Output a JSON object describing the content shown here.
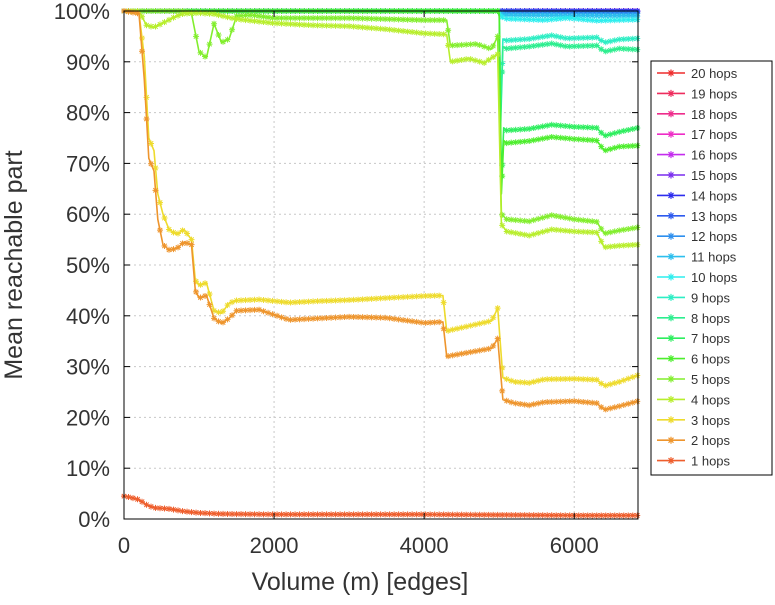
{
  "chart_data": {
    "type": "line",
    "title": "",
    "xlabel": "Volume (m) [edges]",
    "ylabel": "Mean reachable part",
    "xlim": [
      0,
      6850
    ],
    "ylim": [
      0,
      100
    ],
    "xticks": [
      {
        "value": 0,
        "label": "0"
      },
      {
        "value": 2000,
        "label": "2000"
      },
      {
        "value": 4000,
        "label": "4000"
      },
      {
        "value": 6000,
        "label": "6000"
      }
    ],
    "yticks": [
      {
        "value": 0,
        "label": "0%"
      },
      {
        "value": 10,
        "label": "10%"
      },
      {
        "value": 20,
        "label": "20%"
      },
      {
        "value": 30,
        "label": "30%"
      },
      {
        "value": 40,
        "label": "40%"
      },
      {
        "value": 50,
        "label": "50%"
      },
      {
        "value": 60,
        "label": "60%"
      },
      {
        "value": 70,
        "label": "70%"
      },
      {
        "value": 80,
        "label": "80%"
      },
      {
        "value": 90,
        "label": "90%"
      },
      {
        "value": 100,
        "label": "100%"
      }
    ],
    "grid": true,
    "legend_position": "right",
    "series": [
      {
        "name": "20 hops",
        "color": "#ee2d2d",
        "x": [
          0,
          5000,
          6850
        ],
        "y": [
          100,
          100,
          100
        ]
      },
      {
        "name": "19 hops",
        "color": "#ee2d5e",
        "x": [
          0,
          5000,
          6850
        ],
        "y": [
          100,
          100,
          100
        ]
      },
      {
        "name": "18 hops",
        "color": "#ee2d8c",
        "x": [
          0,
          5000,
          6850
        ],
        "y": [
          100,
          100,
          100
        ]
      },
      {
        "name": "17 hops",
        "color": "#ee2dc6",
        "x": [
          0,
          5000,
          6850
        ],
        "y": [
          100,
          100,
          100
        ]
      },
      {
        "name": "16 hops",
        "color": "#c42dee",
        "x": [
          0,
          5000,
          6850
        ],
        "y": [
          100,
          100,
          100
        ]
      },
      {
        "name": "15 hops",
        "color": "#7a2dee",
        "x": [
          0,
          5000,
          6850
        ],
        "y": [
          100,
          100,
          100
        ]
      },
      {
        "name": "14 hops",
        "color": "#2d2dee",
        "x": [
          0,
          5000,
          6850
        ],
        "y": [
          100,
          100,
          100
        ]
      },
      {
        "name": "13 hops",
        "color": "#2d5aee",
        "x": [
          0,
          5000,
          6850
        ],
        "y": [
          100,
          100,
          99.8
        ]
      },
      {
        "name": "12 hops",
        "color": "#2d8fee",
        "x": [
          0,
          5000,
          5050,
          6850
        ],
        "y": [
          100,
          100,
          99.5,
          99.5
        ]
      },
      {
        "name": "11 hops",
        "color": "#2dbfee",
        "x": [
          0,
          5000,
          5050,
          6850
        ],
        "y": [
          100,
          100,
          99.2,
          99.0
        ]
      },
      {
        "name": "10 hops",
        "color": "#2deeee",
        "x": [
          0,
          5000,
          5050,
          5600,
          5900,
          6300,
          6850
        ],
        "y": [
          100,
          100,
          98.5,
          98.2,
          98.6,
          98.1,
          98.3
        ]
      },
      {
        "name": "9 hops",
        "color": "#2deec4",
        "x": [
          0,
          5000,
          5020,
          5050,
          5100,
          5400,
          5700,
          5900,
          6300,
          6400,
          6600,
          6850
        ],
        "y": [
          100,
          100,
          80,
          94.5,
          94.2,
          94.5,
          95.2,
          94.6,
          94.8,
          93.8,
          94.4,
          94.6
        ]
      },
      {
        "name": "8 hops",
        "color": "#2dee8f",
        "x": [
          0,
          5000,
          5020,
          5050,
          5100,
          5400,
          5700,
          5900,
          6300,
          6400,
          6600,
          6850
        ],
        "y": [
          100,
          100,
          78,
          93.0,
          92.6,
          93.0,
          93.6,
          93.0,
          93.2,
          92.0,
          92.6,
          92.4
        ]
      },
      {
        "name": "7 hops",
        "color": "#2dee5e",
        "x": [
          0,
          5000,
          5030,
          5060,
          5100,
          5400,
          5700,
          6000,
          6300,
          6400,
          6600,
          6850
        ],
        "y": [
          100,
          100,
          66,
          77.0,
          76.5,
          76.8,
          77.6,
          77.2,
          77.0,
          75.4,
          76.2,
          77.0
        ]
      },
      {
        "name": "6 hops",
        "color": "#4dee2d",
        "x": [
          0,
          4980,
          5000,
          5030,
          5060,
          5100,
          5400,
          5700,
          6000,
          6300,
          6400,
          6600,
          6850
        ],
        "y": [
          100,
          100,
          99,
          64,
          74.5,
          74.0,
          74.4,
          75.2,
          74.8,
          74.5,
          72.5,
          73.3,
          73.5
        ]
      },
      {
        "name": "5 hops",
        "color": "#82ee2d",
        "x": [
          0,
          800,
          900,
          1000,
          1100,
          1200,
          1300,
          1400,
          1500,
          1700,
          2000,
          3000,
          4000,
          4300,
          4350,
          4700,
          4900,
          4980,
          5030,
          5100,
          5400,
          5700,
          6000,
          6300,
          6400,
          6600,
          6850
        ],
        "y": [
          100,
          100,
          99.5,
          92,
          90.8,
          97.5,
          93.8,
          94.5,
          99,
          99.2,
          98.6,
          98.6,
          98.2,
          98.2,
          93.2,
          93.5,
          92.5,
          95,
          60,
          59,
          58.6,
          59.8,
          59,
          58.5,
          56.2,
          56.8,
          57.4
        ]
      },
      {
        "name": "4 hops",
        "color": "#b8ee2d",
        "x": [
          0,
          200,
          300,
          400,
          500,
          700,
          800,
          1000,
          1200,
          1500,
          2000,
          2500,
          3000,
          3500,
          4000,
          4300,
          4350,
          4600,
          4800,
          4980,
          5030,
          5100,
          5400,
          5700,
          6000,
          6300,
          6400,
          6600,
          6850
        ],
        "y": [
          100,
          100,
          97.2,
          96.8,
          97.5,
          99,
          99.5,
          99.6,
          99.4,
          98.4,
          97.6,
          97.2,
          97.0,
          96.4,
          95.6,
          95.4,
          90,
          90.6,
          89.8,
          91.5,
          58,
          56.6,
          55.8,
          57.0,
          56.6,
          56.4,
          53.5,
          53.8,
          54.0
        ]
      },
      {
        "name": "3 hops",
        "color": "#eedb2d",
        "x": [
          0,
          200,
          270,
          330,
          400,
          450,
          520,
          600,
          700,
          800,
          900,
          950,
          1000,
          1100,
          1200,
          1300,
          1400,
          1500,
          1800,
          2200,
          2600,
          3000,
          3500,
          4000,
          4250,
          4300,
          4600,
          4900,
          4980,
          5050,
          5200,
          5400,
          5600,
          6000,
          6300,
          6400,
          6600,
          6850
        ],
        "y": [
          100,
          99.6,
          91,
          75,
          72.5,
          64,
          60,
          57,
          56,
          57,
          55,
          47,
          46,
          46.5,
          41,
          40.5,
          42.5,
          43,
          43.2,
          42.6,
          42.9,
          43.1,
          43.5,
          43.9,
          44,
          37,
          38,
          39,
          41.5,
          27.8,
          27.0,
          26.8,
          27.5,
          27.6,
          27.4,
          26.2,
          27.0,
          28.3
        ]
      },
      {
        "name": "2 hops",
        "color": "#ee952d",
        "x": [
          0,
          200,
          270,
          330,
          400,
          450,
          520,
          600,
          700,
          800,
          900,
          950,
          1000,
          1100,
          1200,
          1300,
          1400,
          1500,
          1800,
          2200,
          2600,
          3000,
          3500,
          4000,
          4250,
          4300,
          4600,
          4900,
          4980,
          5050,
          5200,
          5400,
          5600,
          6000,
          6300,
          6400,
          6600,
          6850
        ],
        "y": [
          100,
          99.5,
          86.5,
          71,
          68.5,
          59,
          54,
          53,
          53.2,
          54.5,
          54,
          45,
          43.5,
          44,
          39.5,
          38.5,
          39.5,
          41,
          41.2,
          39.2,
          39.5,
          39.8,
          39.6,
          38.6,
          38.8,
          32,
          32.8,
          33.6,
          35.5,
          23.5,
          22.8,
          22.4,
          23.0,
          23.2,
          22.8,
          21.5,
          22.2,
          23.2
        ]
      },
      {
        "name": "1 hops",
        "color": "#ee5e2d",
        "x": [
          0,
          100,
          200,
          300,
          400,
          600,
          800,
          1000,
          1300,
          2000,
          3000,
          4000,
          5000,
          6000,
          6850
        ],
        "y": [
          4.5,
          4.2,
          3.8,
          2.8,
          2.2,
          2.0,
          1.5,
          1.2,
          1.0,
          0.9,
          0.9,
          0.9,
          0.8,
          0.7,
          0.7
        ]
      }
    ]
  }
}
